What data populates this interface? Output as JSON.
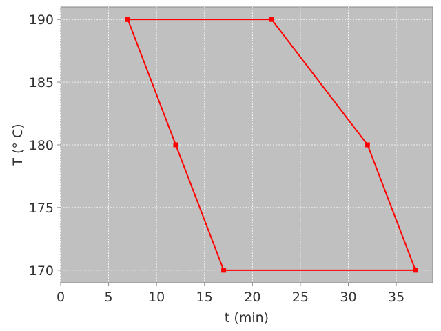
{
  "chart_data": {
    "type": "line",
    "title": "",
    "xlabel": "t (min)",
    "ylabel": "T (° C)",
    "xlim": [
      0,
      38.8
    ],
    "ylim": [
      169,
      191
    ],
    "xticks": [
      0,
      5,
      10,
      15,
      20,
      25,
      30,
      35
    ],
    "yticks": [
      170,
      175,
      180,
      185,
      190
    ],
    "grid": true,
    "background": "#c0c0c0",
    "series": [
      {
        "color": "#ff0000",
        "marker": "square",
        "x": [
          7,
          22,
          32,
          37,
          17,
          12,
          7
        ],
        "y": [
          190,
          190,
          180,
          170,
          170,
          180,
          190
        ]
      }
    ]
  }
}
